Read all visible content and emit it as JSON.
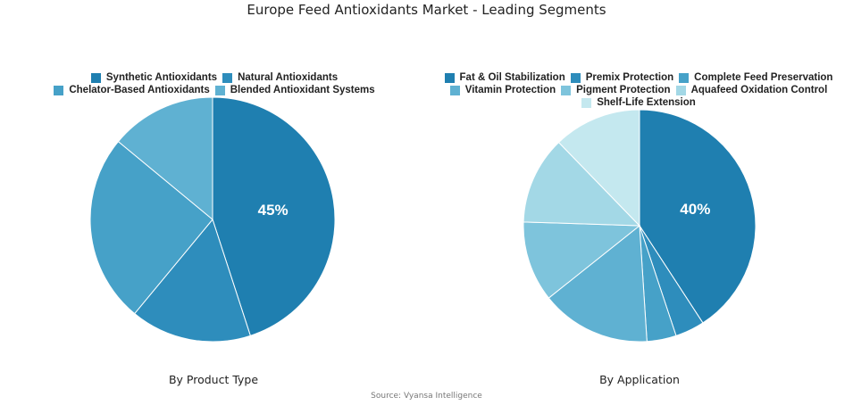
{
  "title": "Europe Feed Antioxidants Market - Leading Segments",
  "source": "Source: Vyansa Intelligence",
  "chart_data": [
    {
      "type": "pie",
      "caption": "By Product Type",
      "legend_position": "top",
      "labels": [
        "Synthetic Antioxidants",
        "Natural Antioxidants",
        "Chelator-Based Antioxidants",
        "Blended Antioxidant Systems"
      ],
      "values": [
        45,
        16,
        25,
        14
      ],
      "colors": [
        "#1f7fb0",
        "#2e8dbc",
        "#46a1c8",
        "#5fb1d2"
      ],
      "data_labels": [
        "45%",
        "",
        "",
        ""
      ]
    },
    {
      "type": "pie",
      "caption": "By Application",
      "legend_position": "top",
      "labels": [
        "Fat & Oil Stabilization",
        "Premix Protection",
        "Complete Feed Preservation",
        "Vitamin Protection",
        "Pigment Protection",
        "Aquafeed Oxidation Control",
        "Shelf-Life Extension"
      ],
      "values": [
        40,
        4,
        4,
        15,
        11,
        12,
        12
      ],
      "colors": [
        "#1f7fb0",
        "#2e8dbc",
        "#46a1c8",
        "#5fb1d2",
        "#7ec4dc",
        "#a3d8e6",
        "#c4e8ef"
      ],
      "data_labels": [
        "40%",
        "",
        "",
        "",
        "",
        "",
        ""
      ]
    }
  ]
}
